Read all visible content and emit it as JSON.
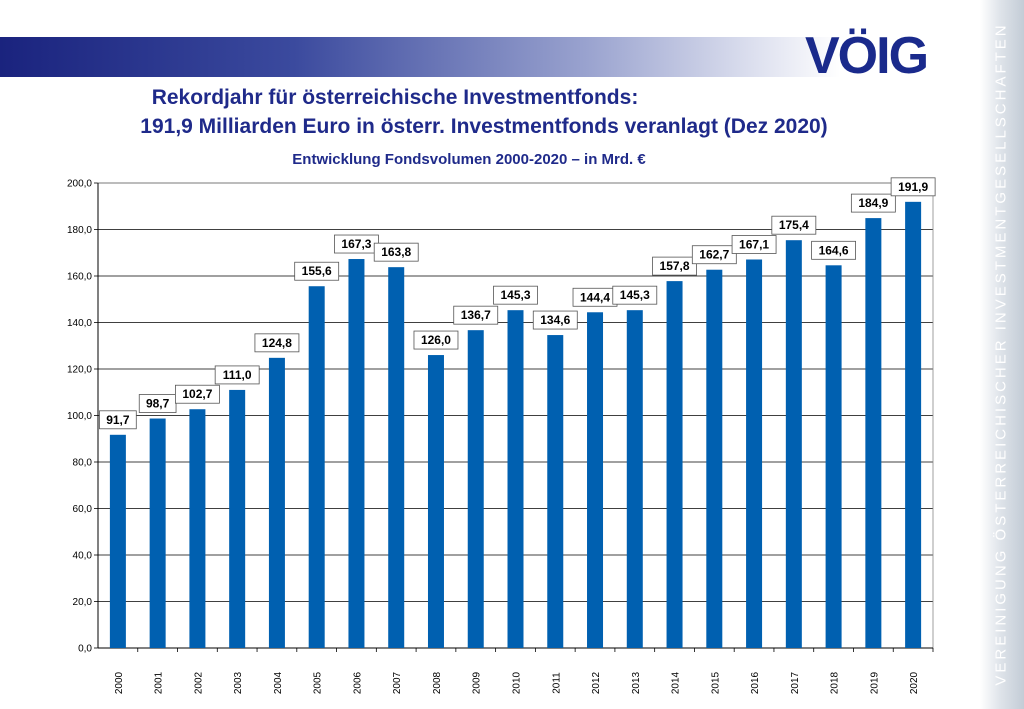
{
  "logo_text": "VÖIG",
  "side_text": "VEREINIGUNG ÖSTERREICHISCHER INVESTMENTGESELLSCHAFTEN",
  "chart_data": {
    "type": "bar",
    "title_line1": "Rekordjahr für österreichische Investmentfonds:",
    "title_line2": "191,9 Milliarden Euro in österr. Investmentfonds veranlagt (Dez 2020)",
    "subtitle": "Entwicklung Fondsvolumen 2000-2020 – in Mrd. €",
    "categories": [
      "2000",
      "2001",
      "2002",
      "2003",
      "2004",
      "2005",
      "2006",
      "2007",
      "2008",
      "2009",
      "2010",
      "2011",
      "2012",
      "2013",
      "2014",
      "2015",
      "2016",
      "2017",
      "2018",
      "2019",
      "2020"
    ],
    "values": [
      91.7,
      98.7,
      102.7,
      111.0,
      124.8,
      155.6,
      167.3,
      163.8,
      126.0,
      136.7,
      145.3,
      134.6,
      144.4,
      145.3,
      157.8,
      162.7,
      167.1,
      175.4,
      164.6,
      184.9,
      191.9
    ],
    "value_labels": [
      "91,7",
      "98,7",
      "102,7",
      "111,0",
      "124,8",
      "155,6",
      "167,3",
      "163,8",
      "126,0",
      "136,7",
      "145,3",
      "134,6",
      "144,4",
      "145,3",
      "157,8",
      "162,7",
      "167,1",
      "175,4",
      "164,6",
      "184,9",
      "191,9"
    ],
    "yticks": [
      0,
      20,
      40,
      60,
      80,
      100,
      120,
      140,
      160,
      180,
      200
    ],
    "ytick_labels": [
      "0,0",
      "20,0",
      "40,0",
      "60,0",
      "80,0",
      "100,0",
      "120,0",
      "140,0",
      "160,0",
      "180,0",
      "200,0"
    ],
    "ylim": [
      0,
      200
    ],
    "grid": true,
    "bar_color": "#0060b0"
  }
}
